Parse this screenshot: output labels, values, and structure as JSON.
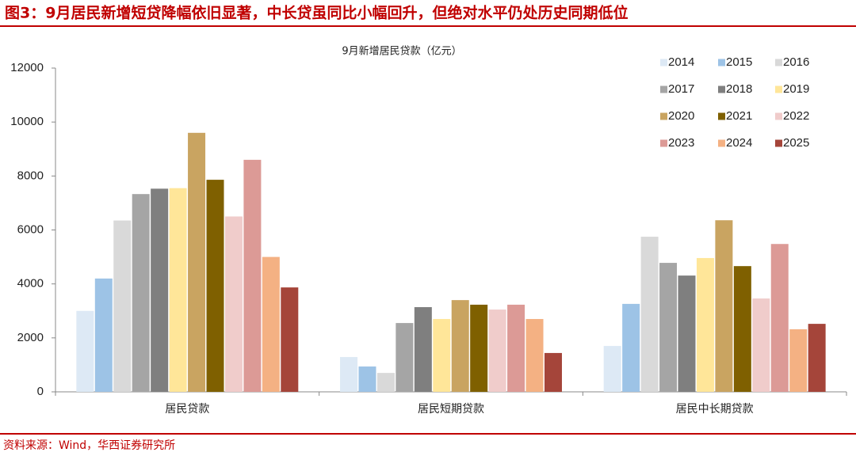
{
  "header": {
    "title": "图3：9月居民新增短贷降幅依旧显著，中长贷虽同比小幅回升，但绝对水平仍处历史同期低位"
  },
  "footer": {
    "source": "资料来源：Wind，华西证券研究所"
  },
  "chart_data": {
    "type": "bar",
    "title": "9月新增居民贷款（亿元）",
    "categories": [
      "居民贷款",
      "居民短期贷款",
      "居民中长期贷款"
    ],
    "series": [
      {
        "name": "2014",
        "color": "#dde9f5",
        "values": [
          3000,
          1290,
          1700
        ]
      },
      {
        "name": "2015",
        "color": "#9dc3e6",
        "values": [
          4200,
          940,
          3260
        ]
      },
      {
        "name": "2016",
        "color": "#d9d9d9",
        "values": [
          6350,
          700,
          5750
        ]
      },
      {
        "name": "2017",
        "color": "#a5a5a5",
        "values": [
          7330,
          2550,
          4780
        ]
      },
      {
        "name": "2018",
        "color": "#7f7f7f",
        "values": [
          7530,
          3140,
          4310
        ]
      },
      {
        "name": "2019",
        "color": "#ffe699",
        "values": [
          7550,
          2700,
          4960
        ]
      },
      {
        "name": "2020",
        "color": "#c9a461",
        "values": [
          9600,
          3400,
          6360
        ]
      },
      {
        "name": "2021",
        "color": "#7f6000",
        "values": [
          7860,
          3230,
          4660
        ]
      },
      {
        "name": "2022",
        "color": "#f0cccb",
        "values": [
          6500,
          3050,
          3460
        ]
      },
      {
        "name": "2023",
        "color": "#dc9a96",
        "values": [
          8600,
          3230,
          5480
        ]
      },
      {
        "name": "2024",
        "color": "#f4b183",
        "values": [
          5000,
          2700,
          2320
        ]
      },
      {
        "name": "2025",
        "color": "#a5453a",
        "values": [
          3870,
          1440,
          2520
        ]
      }
    ],
    "ylim": [
      0,
      12000
    ],
    "yticks": [
      0,
      2000,
      4000,
      6000,
      8000,
      10000,
      12000
    ],
    "grid": false
  }
}
